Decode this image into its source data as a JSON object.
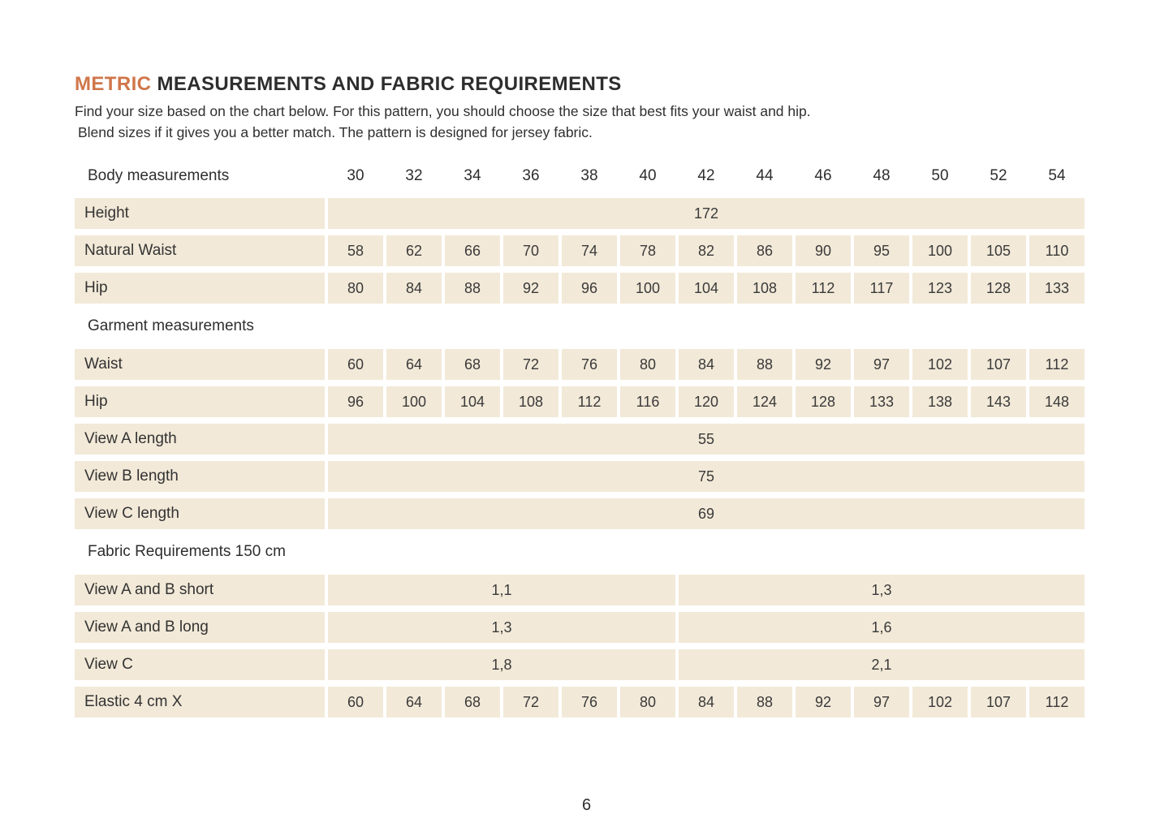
{
  "page": {
    "title_accent": "METRIC",
    "title_rest": " MEASUREMENTS AND FABRIC REQUIREMENTS",
    "intro_line1": "Find your size based on the chart below. For this pattern, you should choose the size that best fits your waist and hip.",
    "intro_line2": "Blend sizes if it gives you a better match.  The pattern is designed for jersey fabric.",
    "page_number": "6"
  },
  "colors": {
    "accent_orange": "#d0764a",
    "cell_background": "#f2e9d8",
    "text": "#333333"
  },
  "table": {
    "rows": [
      {
        "type": "header",
        "label": "Body measurements",
        "values": [
          "30",
          "32",
          "34",
          "36",
          "38",
          "40",
          "42",
          "44",
          "46",
          "48",
          "50",
          "52",
          "54"
        ]
      },
      {
        "type": "full",
        "label": "Height",
        "value": "172"
      },
      {
        "type": "cells",
        "label": "Natural Waist",
        "values": [
          "58",
          "62",
          "66",
          "70",
          "74",
          "78",
          "82",
          "86",
          "90",
          "95",
          "100",
          "105",
          "110"
        ]
      },
      {
        "type": "cells",
        "label": "Hip",
        "values": [
          "80",
          "84",
          "88",
          "92",
          "96",
          "100",
          "104",
          "108",
          "112",
          "117",
          "123",
          "128",
          "133"
        ]
      },
      {
        "type": "section",
        "label": "Garment measurements"
      },
      {
        "type": "cells",
        "label": "Waist",
        "values": [
          "60",
          "64",
          "68",
          "72",
          "76",
          "80",
          "84",
          "88",
          "92",
          "97",
          "102",
          "107",
          "112"
        ]
      },
      {
        "type": "cells",
        "label": "Hip",
        "values": [
          "96",
          "100",
          "104",
          "108",
          "112",
          "116",
          "120",
          "124",
          "128",
          "133",
          "138",
          "143",
          "148"
        ]
      },
      {
        "type": "full",
        "label": "View A length",
        "value": "55"
      },
      {
        "type": "full",
        "label": "View B length",
        "value": "75"
      },
      {
        "type": "full",
        "label": "View C length",
        "value": "69"
      },
      {
        "type": "section",
        "label": "Fabric Requirements 150 cm"
      },
      {
        "type": "split",
        "label": "View A and B  short",
        "left": "1,1",
        "right": "1,3"
      },
      {
        "type": "split",
        "label": "View A and B long",
        "left": "1,3",
        "right": "1,6"
      },
      {
        "type": "split",
        "label": "View C",
        "left": "1,8",
        "right": "2,1"
      },
      {
        "type": "cells",
        "label": "Elastic 4 cm X",
        "values": [
          "60",
          "64",
          "68",
          "72",
          "76",
          "80",
          "84",
          "88",
          "92",
          "97",
          "102",
          "107",
          "112"
        ]
      }
    ]
  }
}
